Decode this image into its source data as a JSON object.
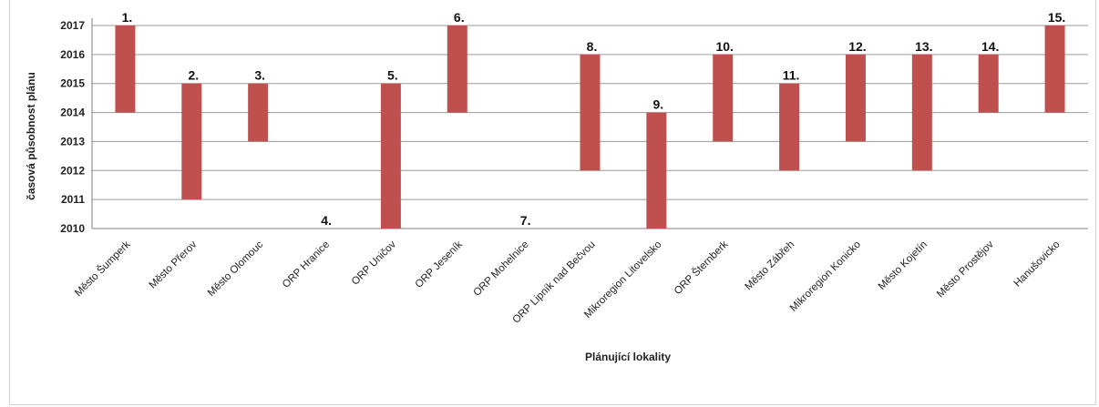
{
  "chart_data": {
    "type": "bar",
    "title": "",
    "xlabel": "Plánující lokality",
    "ylabel": "časová působnost plánu",
    "ylim": [
      2010,
      2017
    ],
    "yticks": [
      2010,
      2011,
      2012,
      2013,
      2014,
      2015,
      2016,
      2017
    ],
    "grid": true,
    "legend": "none",
    "bar_color": "#c0504d",
    "categories": [
      "Město Šumperk",
      "Město Přerov",
      "Město Olomouc",
      "ORP Hranice",
      "ORP Uničov",
      "ORP Jeseník",
      "ORP Mohelnice",
      "ORP Lipník nad Bečvou",
      "Mikroregion Litovelsko",
      "ORP Šternberk",
      "Město Zábřeh",
      "Mikroregion Konicko",
      "Město Kojetín",
      "Město Prostějov",
      "Hanušovicko"
    ],
    "labels": [
      "1.",
      "2.",
      "3.",
      "4.",
      "5.",
      "6.",
      "7.",
      "8.",
      "9.",
      "10.",
      "11.",
      "12.",
      "13.",
      "14.",
      "15."
    ],
    "ranges": [
      [
        2014,
        2017
      ],
      [
        2011,
        2015
      ],
      [
        2013,
        2015
      ],
      null,
      [
        2010,
        2015
      ],
      [
        2014,
        2017
      ],
      null,
      [
        2012,
        2016
      ],
      [
        2010,
        2014
      ],
      [
        2013,
        2016
      ],
      [
        2012,
        2015
      ],
      [
        2013,
        2016
      ],
      [
        2012,
        2016
      ],
      [
        2014,
        2016
      ],
      [
        2014,
        2017
      ]
    ],
    "label_values": [
      2017,
      2015,
      2015,
      2010,
      2015,
      2017,
      2010,
      2016,
      2014,
      2016,
      2015,
      2016,
      2016,
      2016,
      2017
    ]
  }
}
